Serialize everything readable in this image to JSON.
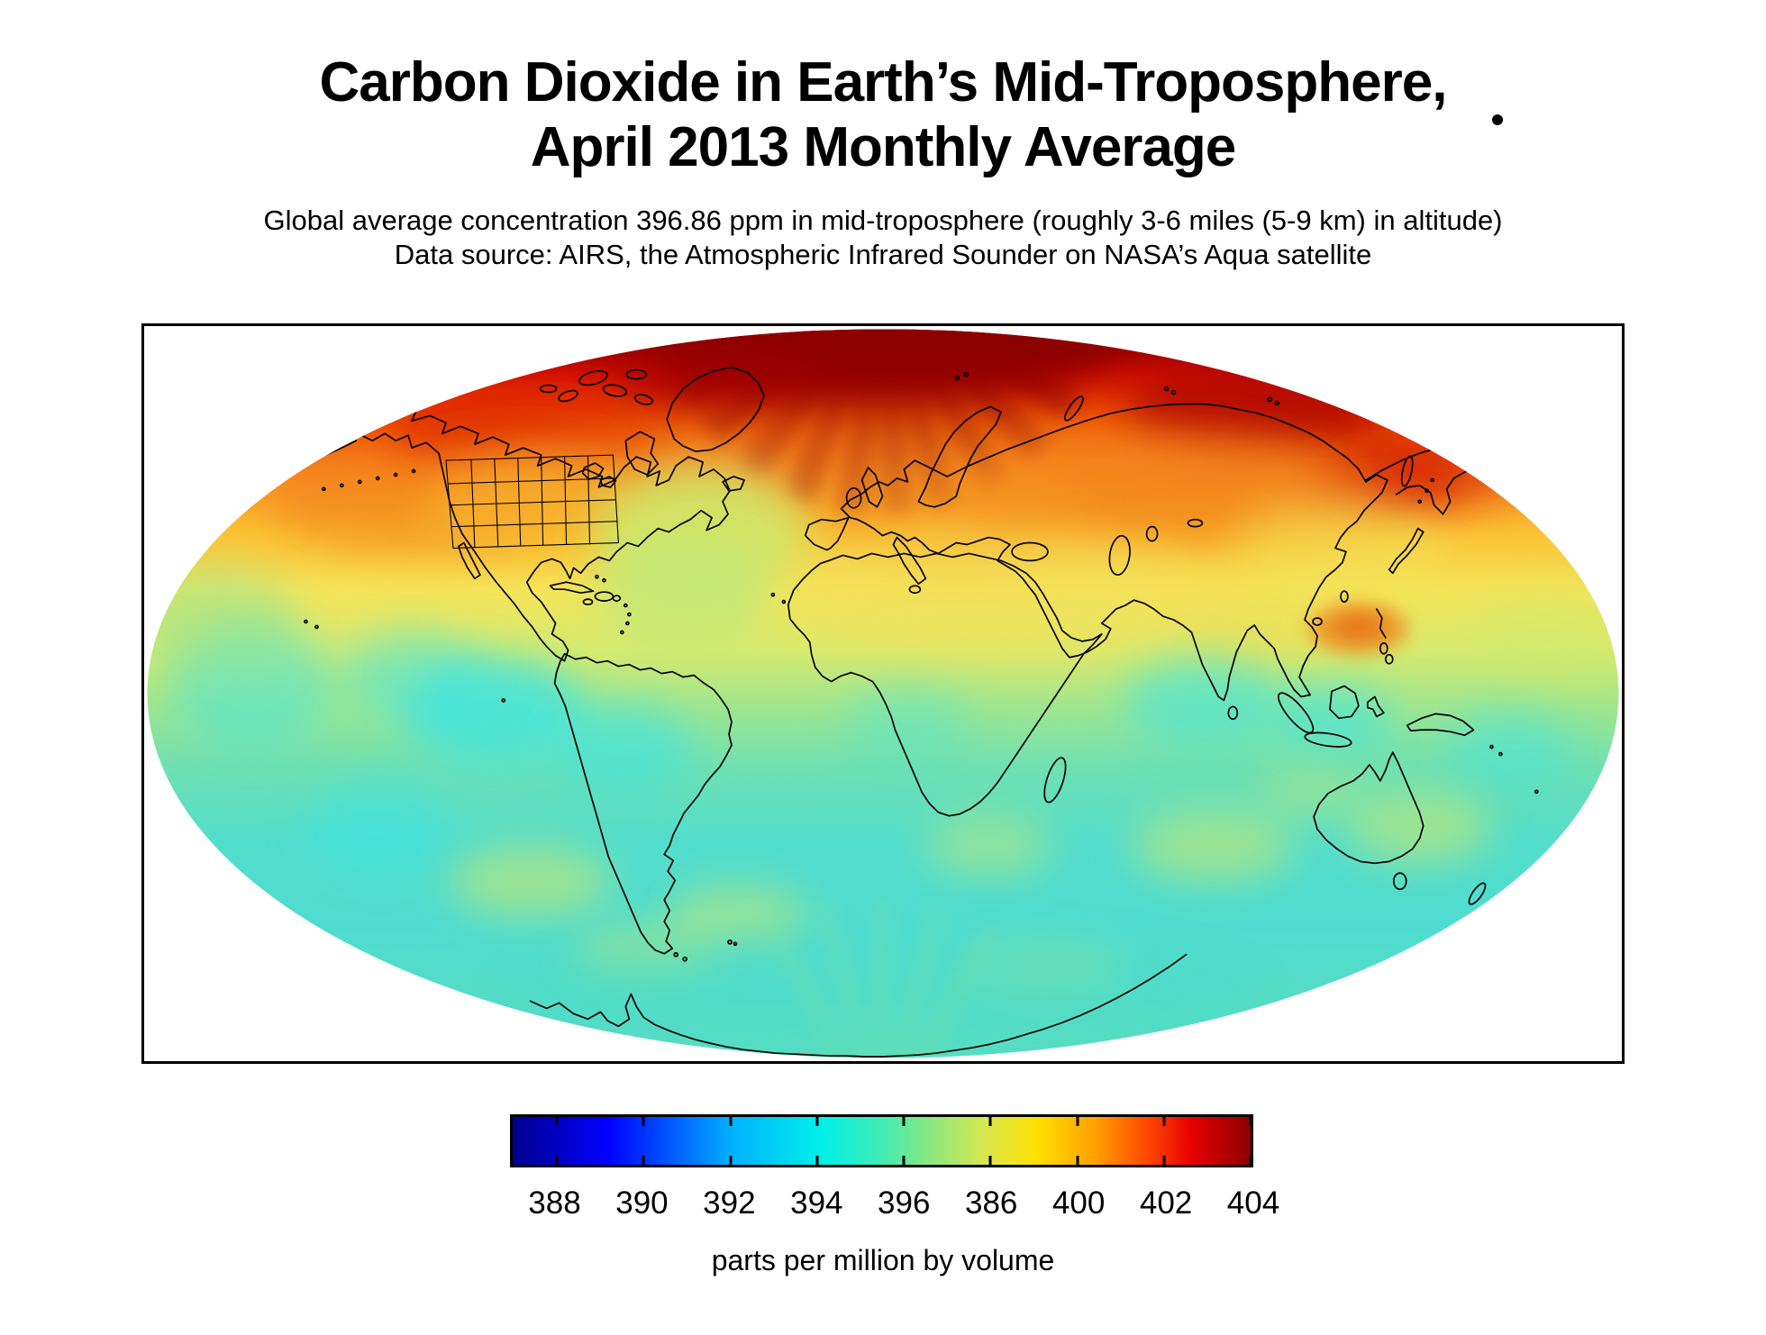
{
  "title": {
    "line1": "Carbon Dioxide in Earth’s Mid-Troposphere,",
    "line2": "April 2013 Monthly Average"
  },
  "subtitle": {
    "line1": "Global average concentration 396.86 ppm in mid-troposphere (roughly 3-6 miles (5-9 km) in altitude)",
    "line2": "Data source: AIRS, the Atmospheric Infrared Sounder on NASA’s Aqua satellite"
  },
  "colorbar": {
    "tick_labels": [
      "388",
      "390",
      "392",
      "394",
      "396",
      "386",
      "400",
      "402",
      "404"
    ],
    "caption": "parts per million by volume",
    "colormap": "jet",
    "gradient_hex": [
      "#00008f",
      "#0000ff",
      "#00ffff",
      "#ffff00",
      "#ff0000",
      "#800000"
    ]
  },
  "chart_data": {
    "type": "heatmap",
    "title": "Carbon Dioxide in Earth’s Mid-Troposphere, April 2013 Monthly Average",
    "units": "parts per million by volume",
    "projection": "Mollweide elliptical world map with coastlines and US state boundaries",
    "global_average_ppm": 396.86,
    "colorbar": {
      "tick_labels": [
        "388",
        "390",
        "392",
        "394",
        "396",
        "386",
        "400",
        "402",
        "404"
      ],
      "displayed_range_ppm": [
        387,
        404
      ],
      "colormap": "jet",
      "note": "sixth tick label reads 386 in the source image (apparent typo for 398)"
    },
    "spatial_pattern": [
      {
        "region": "Arctic / highest northern latitudes",
        "approx_ppm": 402
      },
      {
        "region": "Siberia and northern Eurasia",
        "approx_ppm": 400
      },
      {
        "region": "Canada and northern North America",
        "approx_ppm": 399.5
      },
      {
        "region": "United States and Europe mid-latitudes",
        "approx_ppm": 398
      },
      {
        "region": "North Africa, Middle East, India, China belt",
        "approx_ppm": 396.5
      },
      {
        "region": "North Atlantic dip south of Greenland",
        "approx_ppm": 395.5
      },
      {
        "region": "Philippines / western tropical Pacific patch",
        "approx_ppm": 397.5
      },
      {
        "region": "Equatorial oceans",
        "approx_ppm": 393.5
      },
      {
        "region": "Amazon basin and eastern tropical Pacific",
        "approx_ppm": 392.5
      },
      {
        "region": "Southern hemisphere oceans",
        "approx_ppm": 393
      },
      {
        "region": "Southern mid-latitude yellow-green patches",
        "approx_ppm": 395
      },
      {
        "region": "Antarctic margin",
        "approx_ppm": 393.5
      }
    ]
  }
}
